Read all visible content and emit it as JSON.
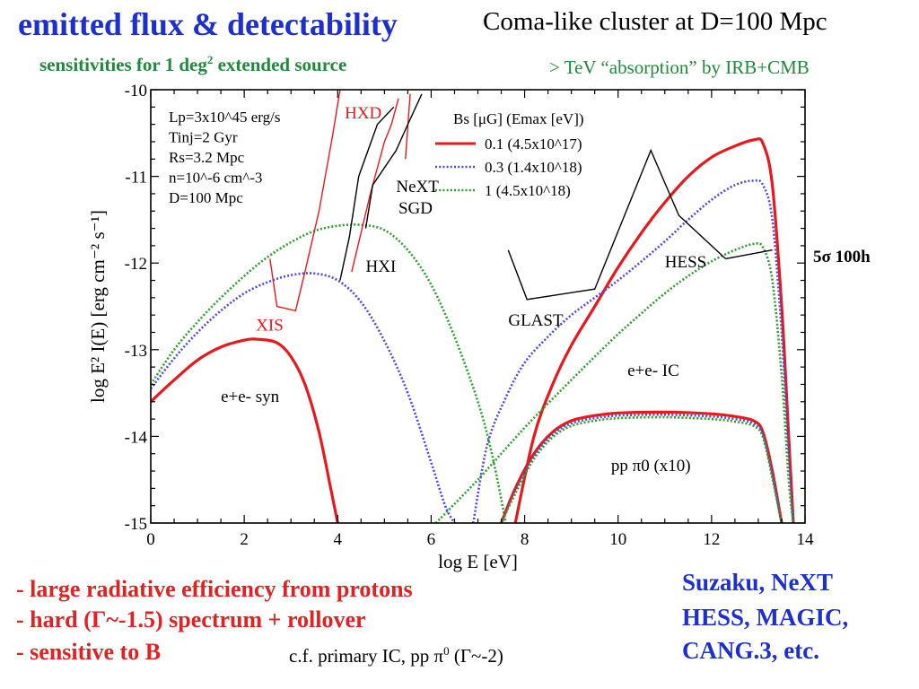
{
  "slide": {
    "title": "emitted flux & detectability",
    "subtitle_right": "Coma-like cluster at D=100 Mpc",
    "subtitle_green_a": "sensitivities for 1 deg",
    "subtitle_green_sup": "2",
    "subtitle_green_b": " extended source",
    "irb_note": "> TeV “absorption” by IRB+CMB",
    "sigma_note": "5σ 100h",
    "bullets": [
      "- large radiative efficiency from protons",
      "- hard (Γ~-1.5) spectrum + rollover",
      "- sensitive to B"
    ],
    "cf_note_a": "c.f. primary IC, pp π",
    "cf_note_sup": "0",
    "cf_note_b": " (Γ~-2)",
    "instruments": [
      "Suzaku, NeXT",
      "HESS, MAGIC,",
      "CANG.3, etc."
    ],
    "colors": {
      "title_blue": "#1d2fcf",
      "green": "#1f8a3a",
      "red": "#e02222"
    }
  },
  "chart_data": {
    "type": "line",
    "xlabel": "log E [eV]",
    "ylabel": "log E² I(E) [erg cm⁻² s⁻¹]",
    "xlim": [
      0,
      14
    ],
    "ylim": [
      -15,
      -10
    ],
    "xticks": [
      0,
      2,
      4,
      6,
      8,
      10,
      12,
      14
    ],
    "yticks": [
      -15,
      -14,
      -13,
      -12,
      -11,
      -10
    ],
    "params_text": [
      "Lp=3x10^45 erg/s",
      "Tinj=2 Gyr",
      "Rs=3.2 Mpc",
      "n=10^-6 cm^-3",
      "D=100 Mpc"
    ],
    "legend": {
      "title": "Bs [μG] (Emax [eV])",
      "position": "top-center",
      "entries": [
        {
          "label": "0.1 (4.5x10^17)",
          "color": "#e8191c",
          "style": "solid"
        },
        {
          "label": "0.3 (1.4x10^18)",
          "color": "#4a4ae0",
          "style": "dotted"
        },
        {
          "label": "1    (4.5x10^18)",
          "color": "#2aa02a",
          "style": "dotted"
        }
      ]
    },
    "series": [
      {
        "name": "0.1 (4.5x10^17)",
        "component": "e+e- syn",
        "color": "#e8191c",
        "style": "solid",
        "points": [
          [
            0,
            -13.6
          ],
          [
            0.5,
            -13.35
          ],
          [
            1,
            -13.12
          ],
          [
            1.5,
            -12.97
          ],
          [
            2,
            -12.89
          ],
          [
            2.3,
            -12.88
          ],
          [
            2.7,
            -12.92
          ],
          [
            3,
            -13.08
          ],
          [
            3.3,
            -13.4
          ],
          [
            3.6,
            -13.95
          ],
          [
            3.85,
            -14.6
          ],
          [
            4.0,
            -15
          ]
        ]
      },
      {
        "name": "0.3 (1.4x10^18)",
        "component": "e+e- syn",
        "color": "#4a4ae0",
        "style": "dotted",
        "points": [
          [
            0,
            -13.45
          ],
          [
            0.5,
            -13.1
          ],
          [
            1,
            -12.8
          ],
          [
            1.5,
            -12.55
          ],
          [
            2,
            -12.35
          ],
          [
            2.5,
            -12.22
          ],
          [
            3,
            -12.14
          ],
          [
            3.5,
            -12.12
          ],
          [
            4,
            -12.2
          ],
          [
            4.5,
            -12.45
          ],
          [
            5,
            -12.9
          ],
          [
            5.5,
            -13.5
          ],
          [
            6,
            -14.3
          ],
          [
            6.3,
            -14.8
          ],
          [
            6.5,
            -15
          ]
        ]
      },
      {
        "name": "1    (4.5x10^18)",
        "component": "e+e- syn",
        "color": "#2aa02a",
        "style": "dotted",
        "points": [
          [
            0,
            -13.4
          ],
          [
            0.5,
            -13.0
          ],
          [
            1,
            -12.68
          ],
          [
            1.5,
            -12.4
          ],
          [
            2,
            -12.15
          ],
          [
            2.5,
            -11.93
          ],
          [
            3,
            -11.76
          ],
          [
            3.5,
            -11.63
          ],
          [
            4,
            -11.57
          ],
          [
            4.5,
            -11.56
          ],
          [
            5,
            -11.62
          ],
          [
            5.5,
            -11.85
          ],
          [
            6,
            -12.25
          ],
          [
            6.5,
            -12.85
          ],
          [
            7,
            -13.6
          ],
          [
            7.3,
            -14.2
          ],
          [
            7.6,
            -15
          ]
        ]
      },
      {
        "name": "0.1 (4.5x10^17)",
        "component": "e+e- IC",
        "color": "#e8191c",
        "style": "solid",
        "points": [
          [
            7.8,
            -15
          ],
          [
            8.2,
            -14.0
          ],
          [
            8.6,
            -13.4
          ],
          [
            9,
            -12.95
          ],
          [
            9.5,
            -12.5
          ],
          [
            10,
            -12.05
          ],
          [
            10.5,
            -11.65
          ],
          [
            11,
            -11.3
          ],
          [
            11.5,
            -11.0
          ],
          [
            12,
            -10.78
          ],
          [
            12.5,
            -10.65
          ],
          [
            12.9,
            -10.58
          ],
          [
            13.1,
            -10.62
          ],
          [
            13.3,
            -11.1
          ],
          [
            13.5,
            -12.5
          ],
          [
            13.65,
            -14.0
          ],
          [
            13.75,
            -15
          ]
        ]
      },
      {
        "name": "0.3 (1.4x10^18)",
        "component": "e+e- IC",
        "color": "#4a4ae0",
        "style": "dotted",
        "points": [
          [
            6.9,
            -15
          ],
          [
            7.2,
            -14.1
          ],
          [
            7.6,
            -13.55
          ],
          [
            8,
            -13.15
          ],
          [
            8.5,
            -12.85
          ],
          [
            9,
            -12.6
          ],
          [
            9.5,
            -12.4
          ],
          [
            10,
            -12.2
          ],
          [
            10.5,
            -11.98
          ],
          [
            11,
            -11.75
          ],
          [
            11.5,
            -11.5
          ],
          [
            12,
            -11.27
          ],
          [
            12.5,
            -11.1
          ],
          [
            12.9,
            -11.05
          ],
          [
            13.1,
            -11.1
          ],
          [
            13.3,
            -11.5
          ],
          [
            13.5,
            -12.8
          ],
          [
            13.65,
            -14.2
          ],
          [
            13.75,
            -15
          ]
        ]
      },
      {
        "name": "1    (4.5x10^18)",
        "component": "e+e- IC",
        "color": "#2aa02a",
        "style": "dotted",
        "points": [
          [
            6.1,
            -15
          ],
          [
            6.5,
            -14.78
          ],
          [
            7,
            -14.5
          ],
          [
            7.5,
            -14.2
          ],
          [
            8,
            -13.9
          ],
          [
            8.5,
            -13.62
          ],
          [
            9,
            -13.35
          ],
          [
            9.5,
            -13.08
          ],
          [
            10,
            -12.82
          ],
          [
            10.5,
            -12.58
          ],
          [
            11,
            -12.35
          ],
          [
            11.5,
            -12.15
          ],
          [
            12,
            -11.98
          ],
          [
            12.5,
            -11.85
          ],
          [
            12.9,
            -11.78
          ],
          [
            13.1,
            -11.82
          ],
          [
            13.3,
            -12.2
          ],
          [
            13.5,
            -13.3
          ],
          [
            13.65,
            -14.5
          ],
          [
            13.75,
            -15
          ]
        ]
      },
      {
        "name": "0.1 (4.5x10^17)",
        "component": "pp π0 (x10)",
        "color": "#e8191c",
        "style": "solid",
        "points": [
          [
            7.5,
            -15
          ],
          [
            7.8,
            -14.6
          ],
          [
            8.2,
            -14.2
          ],
          [
            8.6,
            -13.95
          ],
          [
            9,
            -13.82
          ],
          [
            9.5,
            -13.76
          ],
          [
            10,
            -13.73
          ],
          [
            11,
            -13.72
          ],
          [
            12,
            -13.74
          ],
          [
            12.5,
            -13.77
          ],
          [
            12.9,
            -13.82
          ],
          [
            13.1,
            -13.95
          ],
          [
            13.3,
            -14.4
          ],
          [
            13.5,
            -15
          ]
        ]
      },
      {
        "name": "0.3 (1.4x10^18)",
        "component": "pp π0 (x10)",
        "color": "#4a4ae0",
        "style": "dotted",
        "points": [
          [
            7.5,
            -15
          ],
          [
            7.8,
            -14.63
          ],
          [
            8.2,
            -14.23
          ],
          [
            8.6,
            -13.98
          ],
          [
            9,
            -13.85
          ],
          [
            9.5,
            -13.79
          ],
          [
            10,
            -13.76
          ],
          [
            11,
            -13.75
          ],
          [
            12,
            -13.77
          ],
          [
            12.5,
            -13.8
          ],
          [
            12.9,
            -13.85
          ],
          [
            13.1,
            -13.98
          ],
          [
            13.3,
            -14.45
          ],
          [
            13.5,
            -15
          ]
        ]
      },
      {
        "name": "1    (4.5x10^18)",
        "component": "pp π0 (x10)",
        "color": "#2aa02a",
        "style": "dotted",
        "points": [
          [
            7.5,
            -15
          ],
          [
            7.8,
            -14.66
          ],
          [
            8.2,
            -14.26
          ],
          [
            8.6,
            -14.01
          ],
          [
            9,
            -13.88
          ],
          [
            9.5,
            -13.82
          ],
          [
            10,
            -13.79
          ],
          [
            11,
            -13.78
          ],
          [
            12,
            -13.8
          ],
          [
            12.5,
            -13.83
          ],
          [
            12.9,
            -13.88
          ],
          [
            13.1,
            -14.01
          ],
          [
            13.3,
            -14.48
          ],
          [
            13.5,
            -15
          ]
        ]
      }
    ],
    "sensitivities": [
      {
        "name": "XIS",
        "color": "#e8191c",
        "points": [
          [
            2.55,
            -11.95
          ],
          [
            2.7,
            -12.5
          ],
          [
            3.1,
            -12.55
          ],
          [
            3.3,
            -12.1
          ],
          [
            3.6,
            -11.4
          ],
          [
            3.9,
            -10.5
          ],
          [
            4.05,
            -10.0
          ]
        ]
      },
      {
        "name": "HXD",
        "color": "#e8191c",
        "points": [
          [
            4.3,
            -12.1
          ],
          [
            4.7,
            -11.2
          ],
          [
            5.0,
            -10.6
          ],
          [
            5.15,
            -10.4
          ],
          [
            5.3,
            -10.1
          ]
        ]
      },
      {
        "name": "HXD",
        "color": "#e8191c",
        "points": [
          [
            5.45,
            -10.8
          ],
          [
            5.55,
            -10.05
          ]
        ]
      },
      {
        "name": "HXI",
        "color": "#000000",
        "points": [
          [
            4.05,
            -12.2
          ],
          [
            4.25,
            -11.7
          ],
          [
            4.45,
            -11.0
          ],
          [
            4.85,
            -10.4
          ],
          [
            5.2,
            -10.2
          ]
        ]
      },
      {
        "name": "NeXT SGD",
        "color": "#000000",
        "points": [
          [
            4.6,
            -11.6
          ],
          [
            4.75,
            -11.1
          ],
          [
            5.25,
            -10.7
          ],
          [
            5.5,
            -10.4
          ],
          [
            5.8,
            -10.05
          ]
        ]
      },
      {
        "name": "GLASST",
        "color": "#000000",
        "points": [
          [
            7.65,
            -11.85
          ],
          [
            8.05,
            -12.42
          ],
          [
            9.5,
            -12.3
          ],
          [
            10.7,
            -10.7
          ],
          [
            11.3,
            -11.45
          ],
          [
            12.3,
            -11.95
          ]
        ]
      },
      {
        "name": "HESS",
        "color": "#000000",
        "points": [
          [
            12.3,
            -11.95
          ],
          [
            13.3,
            -11.85
          ]
        ]
      }
    ],
    "annotations": [
      {
        "text": "HXD",
        "x": 4.15,
        "y": -10.33,
        "color": "#e8191c"
      },
      {
        "text": "XIS",
        "x": 2.25,
        "y": -12.78,
        "color": "#e8191c"
      },
      {
        "text": "NeXT",
        "x": 5.25,
        "y": -11.18,
        "color": "#000000"
      },
      {
        "text": "SGD",
        "x": 5.3,
        "y": -11.43,
        "color": "#000000"
      },
      {
        "text": "HXI",
        "x": 4.6,
        "y": -12.1,
        "color": "#000000"
      },
      {
        "text": "GLAST",
        "x": 7.65,
        "y": -12.72,
        "color": "#000000"
      },
      {
        "text": "HESS",
        "x": 11.0,
        "y": -12.05,
        "color": "#000000"
      },
      {
        "text": "e+e- syn",
        "x": 1.5,
        "y": -13.6,
        "color": "#000000"
      },
      {
        "text": "e+e- IC",
        "x": 10.2,
        "y": -13.3,
        "color": "#000000"
      },
      {
        "text": "pp π0 (x10)",
        "x": 9.85,
        "y": -14.4,
        "color": "#000000"
      }
    ],
    "grid": false
  }
}
